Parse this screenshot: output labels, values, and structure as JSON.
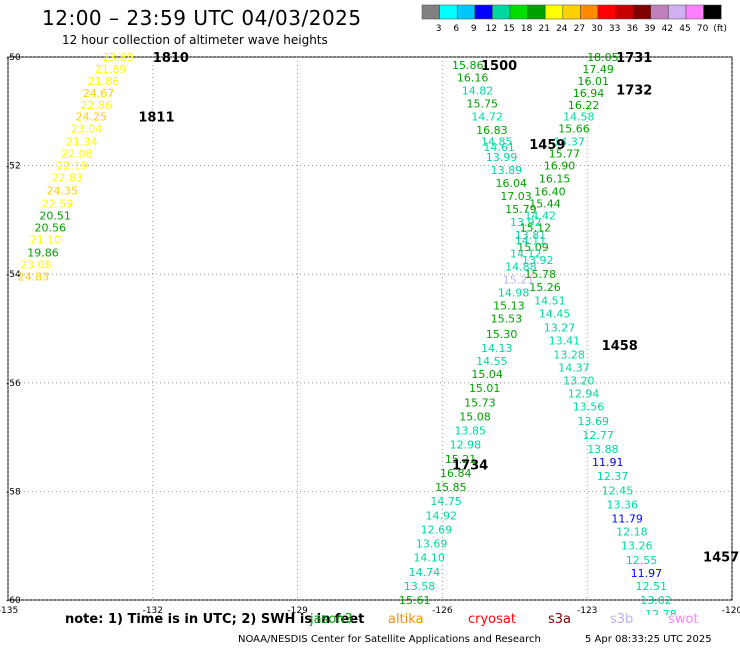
{
  "header": {
    "title": "12:00 – 23:59 UTC 04/03/2025",
    "subtitle": "12 hour collection of altimeter wave heights"
  },
  "color_scale": {
    "labels": [
      "3",
      "6",
      "9",
      "12",
      "15",
      "18",
      "21",
      "24",
      "27",
      "30",
      "33",
      "36",
      "39",
      "42",
      "45",
      "70",
      "(ft)"
    ],
    "colors": [
      "#808080",
      "#00ffff",
      "#00c8ff",
      "#0000ff",
      "#00d8a0",
      "#00e000",
      "#00a000",
      "#ffff00",
      "#ffd000",
      "#ff8c00",
      "#ff0000",
      "#c80000",
      "#800000",
      "#c080c0",
      "#d0b0f0",
      "#ff80ff",
      "#000000"
    ]
  },
  "footer": {
    "note": "note: 1) Time is in UTC; 2) SWH is in feet",
    "credit": "NOAA/NESDIS Center for Satellite Applications and Research",
    "timestamp": "5 Apr 08:33:25 UTC 2025",
    "satellites": [
      {
        "name": "jason3",
        "color": "#00a000"
      },
      {
        "name": "altika",
        "color": "#ff8c00"
      },
      {
        "name": "cryosat",
        "color": "#ff0000"
      },
      {
        "name": "s3a",
        "color": "#800000"
      },
      {
        "name": "s3b",
        "color": "#c0b0f0"
      },
      {
        "name": "swot",
        "color": "#ff80ff"
      }
    ]
  },
  "chart_data": {
    "type": "scatter",
    "title": "12 hour collection of altimeter wave heights",
    "xlabel": "",
    "ylabel": "",
    "xlim": [
      -135,
      -120
    ],
    "ylim": [
      -60,
      -50
    ],
    "x_ticks": [
      "-135",
      "-132",
      "-129",
      "-126",
      "-123",
      "-120"
    ],
    "y_ticks": [
      "-50",
      "-52",
      "-54",
      "-56",
      "-58",
      "-60"
    ],
    "grid": true,
    "unit": "ft",
    "track_labels": [
      {
        "text": "1810",
        "lon": -132.0,
        "lat": -50.0,
        "color": "#800000"
      },
      {
        "text": "1811",
        "lon": -132.3,
        "lat": -51.1,
        "color": "#800000"
      },
      {
        "text": "1500",
        "lon": -125.2,
        "lat": -50.15,
        "color": "#ff8c00"
      },
      {
        "text": "1459",
        "lon": -124.2,
        "lat": -51.6,
        "color": "#ff8c00"
      },
      {
        "text": "1458",
        "lon": -122.7,
        "lat": -55.3,
        "color": "#ff8c00"
      },
      {
        "text": "1457",
        "lon": -120.6,
        "lat": -59.2,
        "color": "#ff8c00"
      },
      {
        "text": "1731",
        "lon": -122.4,
        "lat": -50.0,
        "color": "#c0b0f0"
      },
      {
        "text": "1732",
        "lon": -122.4,
        "lat": -50.6,
        "color": "#c0b0f0"
      },
      {
        "text": "1734",
        "lon": -125.8,
        "lat": -57.5,
        "color": "#c0b0f0"
      }
    ],
    "points": [
      {
        "v": "23.89",
        "lon": -133.05,
        "lat": -50.0,
        "c": "#ffff00"
      },
      {
        "v": "21.89",
        "lon": -133.2,
        "lat": -50.22,
        "c": "#ffff00"
      },
      {
        "v": "21.86",
        "lon": -133.35,
        "lat": -50.44,
        "c": "#ffff00"
      },
      {
        "v": "24.67",
        "lon": -133.45,
        "lat": -50.66,
        "c": "#ffd000"
      },
      {
        "v": "22.86",
        "lon": -133.5,
        "lat": -50.88,
        "c": "#ffff00"
      },
      {
        "v": "24.25",
        "lon": -133.6,
        "lat": -51.1,
        "c": "#ffd000"
      },
      {
        "v": "23.04",
        "lon": -133.7,
        "lat": -51.32,
        "c": "#ffff00"
      },
      {
        "v": "21.34",
        "lon": -133.8,
        "lat": -51.56,
        "c": "#ffff00"
      },
      {
        "v": "22.08",
        "lon": -133.9,
        "lat": -51.78,
        "c": "#ffff00"
      },
      {
        "v": "22.19",
        "lon": -134.0,
        "lat": -52.0,
        "c": "#ffff00"
      },
      {
        "v": "22.83",
        "lon": -134.1,
        "lat": -52.22,
        "c": "#ffff00"
      },
      {
        "v": "24.35",
        "lon": -134.2,
        "lat": -52.46,
        "c": "#ffd000"
      },
      {
        "v": "22.59",
        "lon": -134.3,
        "lat": -52.7,
        "c": "#ffff00"
      },
      {
        "v": "20.51",
        "lon": -134.35,
        "lat": -52.92,
        "c": "#00a000"
      },
      {
        "v": "20.56",
        "lon": -134.45,
        "lat": -53.14,
        "c": "#00a000"
      },
      {
        "v": "21.10",
        "lon": -134.55,
        "lat": -53.36,
        "c": "#ffff00"
      },
      {
        "v": "19.86",
        "lon": -134.6,
        "lat": -53.6,
        "c": "#00a000"
      },
      {
        "v": "23.08",
        "lon": -134.75,
        "lat": -53.82,
        "c": "#ffff00"
      },
      {
        "v": "24.83",
        "lon": -134.8,
        "lat": -54.04,
        "c": "#ffd000"
      },
      {
        "v": "15.86",
        "lon": -125.8,
        "lat": -50.15,
        "c": "#00a000"
      },
      {
        "v": "16.16",
        "lon": -125.7,
        "lat": -50.38,
        "c": "#00a000"
      },
      {
        "v": "14.82",
        "lon": -125.6,
        "lat": -50.62,
        "c": "#00d8a0"
      },
      {
        "v": "15.75",
        "lon": -125.5,
        "lat": -50.86,
        "c": "#00a000"
      },
      {
        "v": "14.72",
        "lon": -125.4,
        "lat": -51.1,
        "c": "#00d8a0"
      },
      {
        "v": "16.83",
        "lon": -125.3,
        "lat": -51.34,
        "c": "#00a000"
      },
      {
        "v": "14.85",
        "lon": -125.2,
        "lat": -51.56,
        "c": "#00d8a0"
      },
      {
        "v": "14.61",
        "lon": -125.15,
        "lat": -51.66,
        "c": "#00d8a0"
      },
      {
        "v": "13.99",
        "lon": -125.1,
        "lat": -51.84,
        "c": "#00d8a0"
      },
      {
        "v": "13.89",
        "lon": -125.0,
        "lat": -52.08,
        "c": "#00d8a0"
      },
      {
        "v": "16.04",
        "lon": -124.9,
        "lat": -52.32,
        "c": "#00a000"
      },
      {
        "v": "17.03",
        "lon": -124.8,
        "lat": -52.56,
        "c": "#00a000"
      },
      {
        "v": "15.79",
        "lon": -124.7,
        "lat": -52.8,
        "c": "#00a000"
      },
      {
        "v": "13.92",
        "lon": -124.6,
        "lat": -53.04,
        "c": "#00d8a0"
      },
      {
        "v": "13.81",
        "lon": -124.5,
        "lat": -53.28,
        "c": "#00d8a0"
      },
      {
        "v": "15.09",
        "lon": -124.45,
        "lat": -53.5,
        "c": "#00a000"
      },
      {
        "v": "13.92",
        "lon": -124.35,
        "lat": -53.74,
        "c": "#00d8a0"
      },
      {
        "v": "15.78",
        "lon": -124.3,
        "lat": -54.0,
        "c": "#00a000"
      },
      {
        "v": "15.26",
        "lon": -124.2,
        "lat": -54.24,
        "c": "#00a000"
      },
      {
        "v": "14.51",
        "lon": -124.1,
        "lat": -54.48,
        "c": "#00d8a0"
      },
      {
        "v": "14.45",
        "lon": -124.0,
        "lat": -54.72,
        "c": "#00d8a0"
      },
      {
        "v": "13.27",
        "lon": -123.9,
        "lat": -54.98,
        "c": "#00d8a0"
      },
      {
        "v": "13.41",
        "lon": -123.8,
        "lat": -55.22,
        "c": "#00d8a0"
      },
      {
        "v": "13.28",
        "lon": -123.7,
        "lat": -55.48,
        "c": "#00d8a0"
      },
      {
        "v": "14.37",
        "lon": -123.6,
        "lat": -55.72,
        "c": "#00d8a0"
      },
      {
        "v": "13.20",
        "lon": -123.5,
        "lat": -55.96,
        "c": "#00d8a0"
      },
      {
        "v": "12.94",
        "lon": -123.4,
        "lat": -56.2,
        "c": "#00d8a0"
      },
      {
        "v": "13.56",
        "lon": -123.3,
        "lat": -56.44,
        "c": "#00d8a0"
      },
      {
        "v": "13.69",
        "lon": -123.2,
        "lat": -56.7,
        "c": "#00d8a0"
      },
      {
        "v": "12.77",
        "lon": -123.1,
        "lat": -56.96,
        "c": "#00d8a0"
      },
      {
        "v": "13.88",
        "lon": -123.0,
        "lat": -57.22,
        "c": "#00d8a0"
      },
      {
        "v": "11.91",
        "lon": -122.9,
        "lat": -57.46,
        "c": "#0000ff"
      },
      {
        "v": "12.37",
        "lon": -122.8,
        "lat": -57.72,
        "c": "#00d8a0"
      },
      {
        "v": "12.45",
        "lon": -122.7,
        "lat": -57.98,
        "c": "#00d8a0"
      },
      {
        "v": "13.36",
        "lon": -122.6,
        "lat": -58.24,
        "c": "#00d8a0"
      },
      {
        "v": "11.79",
        "lon": -122.5,
        "lat": -58.5,
        "c": "#0000ff"
      },
      {
        "v": "12.18",
        "lon": -122.4,
        "lat": -58.74,
        "c": "#00d8a0"
      },
      {
        "v": "13.26",
        "lon": -122.3,
        "lat": -59.0,
        "c": "#00d8a0"
      },
      {
        "v": "12.55",
        "lon": -122.2,
        "lat": -59.26,
        "c": "#00d8a0"
      },
      {
        "v": "11.97",
        "lon": -122.1,
        "lat": -59.5,
        "c": "#0000ff"
      },
      {
        "v": "12.51",
        "lon": -122.0,
        "lat": -59.74,
        "c": "#00d8a0"
      },
      {
        "v": "13.02",
        "lon": -121.9,
        "lat": -60.0,
        "c": "#00d8a0"
      },
      {
        "v": "12.78",
        "lon": -121.8,
        "lat": -60.26,
        "c": "#00d8a0"
      },
      {
        "v": "18.05",
        "lon": -123.0,
        "lat": -50.0,
        "c": "#00a000"
      },
      {
        "v": "17.49",
        "lon": -123.1,
        "lat": -50.22,
        "c": "#00a000"
      },
      {
        "v": "16.01",
        "lon": -123.2,
        "lat": -50.44,
        "c": "#00a000"
      },
      {
        "v": "16.94",
        "lon": -123.3,
        "lat": -50.66,
        "c": "#00a000"
      },
      {
        "v": "16.22",
        "lon": -123.4,
        "lat": -50.88,
        "c": "#00a000"
      },
      {
        "v": "14.58",
        "lon": -123.5,
        "lat": -51.1,
        "c": "#00d8a0"
      },
      {
        "v": "15.66",
        "lon": -123.6,
        "lat": -51.32,
        "c": "#00a000"
      },
      {
        "v": "14.37",
        "lon": -123.7,
        "lat": -51.56,
        "c": "#00d8a0"
      },
      {
        "v": "15.77",
        "lon": -123.8,
        "lat": -51.78,
        "c": "#00a000"
      },
      {
        "v": "16.90",
        "lon": -123.9,
        "lat": -52.0,
        "c": "#00a000"
      },
      {
        "v": "16.15",
        "lon": -124.0,
        "lat": -52.24,
        "c": "#00a000"
      },
      {
        "v": "16.40",
        "lon": -124.1,
        "lat": -52.48,
        "c": "#00a000"
      },
      {
        "v": "15.44",
        "lon": -124.2,
        "lat": -52.7,
        "c": "#00a000"
      },
      {
        "v": "14.42",
        "lon": -124.3,
        "lat": -52.92,
        "c": "#00d8a0"
      },
      {
        "v": "15.12",
        "lon": -124.4,
        "lat": -53.14,
        "c": "#00a000"
      },
      {
        "v": "14.11",
        "lon": -124.5,
        "lat": -53.38,
        "c": "#00d8a0"
      },
      {
        "v": "14.12",
        "lon": -124.6,
        "lat": -53.62,
        "c": "#00d8a0"
      },
      {
        "v": "14.88",
        "lon": -124.7,
        "lat": -53.86,
        "c": "#00d8a0"
      },
      {
        "v": "15.21",
        "lon": -124.75,
        "lat": -54.1,
        "c": "#c0b0f0"
      },
      {
        "v": "14.98",
        "lon": -124.85,
        "lat": -54.34,
        "c": "#00d8a0"
      },
      {
        "v": "15.13",
        "lon": -124.95,
        "lat": -54.58,
        "c": "#00a000"
      },
      {
        "v": "15.53",
        "lon": -125.0,
        "lat": -54.82,
        "c": "#00a000"
      },
      {
        "v": "15.30",
        "lon": -125.1,
        "lat": -55.1,
        "c": "#00a000"
      },
      {
        "v": "14.13",
        "lon": -125.2,
        "lat": -55.36,
        "c": "#00d8a0"
      },
      {
        "v": "14.55",
        "lon": -125.3,
        "lat": -55.6,
        "c": "#00d8a0"
      },
      {
        "v": "15.04",
        "lon": -125.4,
        "lat": -55.84,
        "c": "#00a000"
      },
      {
        "v": "15.01",
        "lon": -125.45,
        "lat": -56.1,
        "c": "#00a000"
      },
      {
        "v": "15.73",
        "lon": -125.55,
        "lat": -56.36,
        "c": "#00a000"
      },
      {
        "v": "15.08",
        "lon": -125.65,
        "lat": -56.62,
        "c": "#00a000"
      },
      {
        "v": "13.85",
        "lon": -125.75,
        "lat": -56.88,
        "c": "#00d8a0"
      },
      {
        "v": "12.98",
        "lon": -125.85,
        "lat": -57.14,
        "c": "#00d8a0"
      },
      {
        "v": "15.21",
        "lon": -125.95,
        "lat": -57.4,
        "c": "#00a000"
      },
      {
        "v": "16.84",
        "lon": -126.05,
        "lat": -57.66,
        "c": "#00a000"
      },
      {
        "v": "15.85",
        "lon": -126.15,
        "lat": -57.92,
        "c": "#00a000"
      },
      {
        "v": "14.75",
        "lon": -126.25,
        "lat": -58.18,
        "c": "#00d8a0"
      },
      {
        "v": "14.92",
        "lon": -126.35,
        "lat": -58.44,
        "c": "#00d8a0"
      },
      {
        "v": "12.69",
        "lon": -126.45,
        "lat": -58.7,
        "c": "#00d8a0"
      },
      {
        "v": "13.69",
        "lon": -126.55,
        "lat": -58.96,
        "c": "#00d8a0"
      },
      {
        "v": "14.10",
        "lon": -126.6,
        "lat": -59.22,
        "c": "#00d8a0"
      },
      {
        "v": "14.74",
        "lon": -126.7,
        "lat": -59.48,
        "c": "#00d8a0"
      },
      {
        "v": "13.58",
        "lon": -126.8,
        "lat": -59.74,
        "c": "#00d8a0"
      },
      {
        "v": "15.61",
        "lon": -126.9,
        "lat": -60.0,
        "c": "#00a000"
      }
    ]
  }
}
